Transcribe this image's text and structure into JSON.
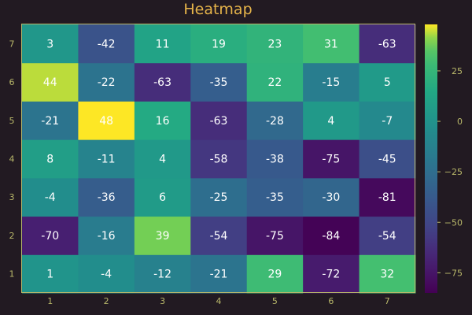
{
  "chart_data": {
    "type": "heatmap",
    "title": "Heatmap",
    "x": [
      1,
      2,
      3,
      4,
      5,
      6,
      7
    ],
    "y": [
      1,
      2,
      3,
      4,
      5,
      6,
      7
    ],
    "values": [
      [
        1,
        -4,
        -12,
        -21,
        29,
        -72,
        32
      ],
      [
        -70,
        -16,
        39,
        -54,
        -75,
        -84,
        -54
      ],
      [
        -4,
        -36,
        6,
        -25,
        -35,
        -30,
        -81
      ],
      [
        8,
        -11,
        4,
        -58,
        -38,
        -75,
        -45
      ],
      [
        -21,
        48,
        16,
        -63,
        -28,
        4,
        -7
      ],
      [
        44,
        -22,
        -63,
        -35,
        22,
        -15,
        5
      ],
      [
        3,
        -42,
        11,
        19,
        23,
        31,
        -63
      ]
    ],
    "colorbar": {
      "range": [
        -85,
        48
      ],
      "ticks": [
        -75,
        -50,
        -25,
        0,
        25
      ]
    },
    "colormap": "viridis",
    "grid": false
  }
}
